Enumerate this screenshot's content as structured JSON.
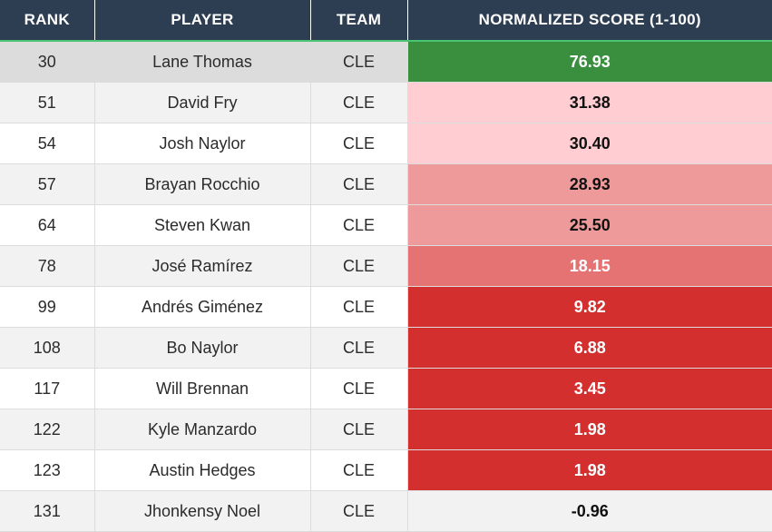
{
  "headers": [
    "RANK",
    "PLAYER",
    "TEAM",
    "NORMALIZED SCORE (1-100)"
  ],
  "rows": [
    {
      "rank": "30",
      "player": "Lane Thomas",
      "team": "CLE",
      "score": "76.93"
    },
    {
      "rank": "51",
      "player": "David Fry",
      "team": "CLE",
      "score": "31.38"
    },
    {
      "rank": "54",
      "player": "Josh Naylor",
      "team": "CLE",
      "score": "30.40"
    },
    {
      "rank": "57",
      "player": "Brayan Rocchio",
      "team": "CLE",
      "score": "28.93"
    },
    {
      "rank": "64",
      "player": "Steven Kwan",
      "team": "CLE",
      "score": "25.50"
    },
    {
      "rank": "78",
      "player": "José Ramírez",
      "team": "CLE",
      "score": "18.15"
    },
    {
      "rank": "99",
      "player": "Andrés Giménez",
      "team": "CLE",
      "score": "9.82"
    },
    {
      "rank": "108",
      "player": "Bo Naylor",
      "team": "CLE",
      "score": "6.88"
    },
    {
      "rank": "117",
      "player": "Will Brennan",
      "team": "CLE",
      "score": "3.45"
    },
    {
      "rank": "122",
      "player": "Kyle Manzardo",
      "team": "CLE",
      "score": "1.98"
    },
    {
      "rank": "123",
      "player": "Austin Hedges",
      "team": "CLE",
      "score": "1.98"
    },
    {
      "rank": "131",
      "player": "Jhonkensy Noel",
      "team": "CLE",
      "score": "-0.96"
    }
  ],
  "score_colors": {
    "high": "#3a8f3f",
    "light_pink": "#ffcdd2",
    "pink": "#ee9a9a",
    "salmon": "#e57373",
    "red": "#d32f2f",
    "neutral": "#f2f2f2"
  }
}
